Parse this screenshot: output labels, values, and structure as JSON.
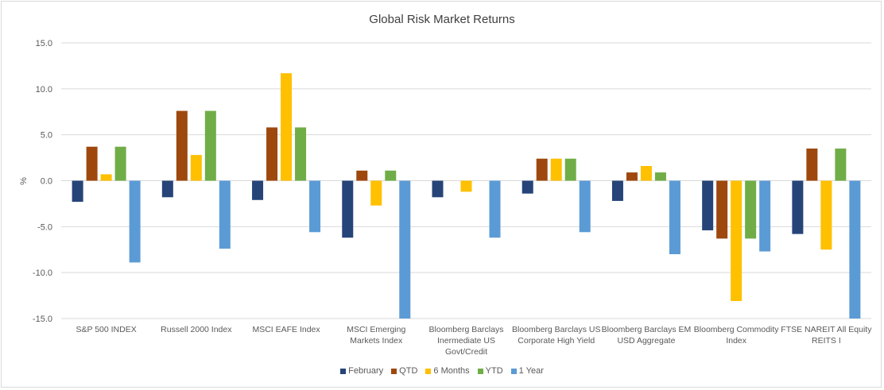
{
  "chart_data": {
    "type": "bar",
    "title": "Global Risk Market Returns",
    "ylabel": "%",
    "ylim": [
      -15,
      15
    ],
    "yticks": [
      15,
      10,
      5,
      0,
      -5,
      -10,
      -15
    ],
    "ytick_labels": [
      "15.0",
      "10.0",
      "5.0",
      "0.0",
      "-5.0",
      "-10.0",
      "-15.0"
    ],
    "grid": true,
    "legend_position": "bottom",
    "categories": [
      "S&P 500 INDEX",
      "Russell 2000 Index",
      "MSCI EAFE Index",
      "MSCI Emerging Markets Index",
      "Bloomberg Barclays Inermediate US Govt/Credit",
      "Bloomberg Barclays US Corporate High Yield",
      "Bloomberg Barclays EM USD Aggregate",
      "Bloomberg Commodity Index",
      "FTSE NAREIT All Equity REITS I"
    ],
    "category_lines": [
      [
        "S&P 500 INDEX"
      ],
      [
        "Russell 2000 Index"
      ],
      [
        "MSCI EAFE Index"
      ],
      [
        "MSCI Emerging",
        "Markets Index"
      ],
      [
        "Bloomberg Barclays",
        "Inermediate US",
        "Govt/Credit"
      ],
      [
        "Bloomberg Barclays US",
        "Corporate High Yield"
      ],
      [
        "Bloomberg Barclays EM",
        "USD Aggregate"
      ],
      [
        "Bloomberg Commodity",
        "Index"
      ],
      [
        "FTSE NAREIT All Equity",
        "REITS I"
      ]
    ],
    "series": [
      {
        "name": "February",
        "color": "#264478",
        "values": [
          -2.3,
          -1.8,
          -2.1,
          -6.2,
          -1.8,
          -1.4,
          -2.2,
          -5.4,
          -5.8
        ]
      },
      {
        "name": "QTD",
        "color": "#9e480e",
        "values": [
          3.7,
          7.6,
          5.8,
          1.1,
          0.0,
          2.4,
          0.9,
          -6.3,
          3.5
        ]
      },
      {
        "name": "6 Months",
        "color": "#ffc000",
        "values": [
          0.7,
          2.8,
          11.7,
          -2.7,
          -1.2,
          2.4,
          1.6,
          -13.1,
          -7.5
        ]
      },
      {
        "name": "YTD",
        "color": "#70ad47",
        "values": [
          3.7,
          7.6,
          5.8,
          1.1,
          0.0,
          2.4,
          0.9,
          -6.3,
          3.5
        ]
      },
      {
        "name": "1 Year",
        "color": "#5b9bd5",
        "values": [
          -8.9,
          -7.4,
          -5.6,
          -15.3,
          -6.2,
          -5.6,
          -8.0,
          -7.7,
          -15.3
        ]
      }
    ]
  }
}
